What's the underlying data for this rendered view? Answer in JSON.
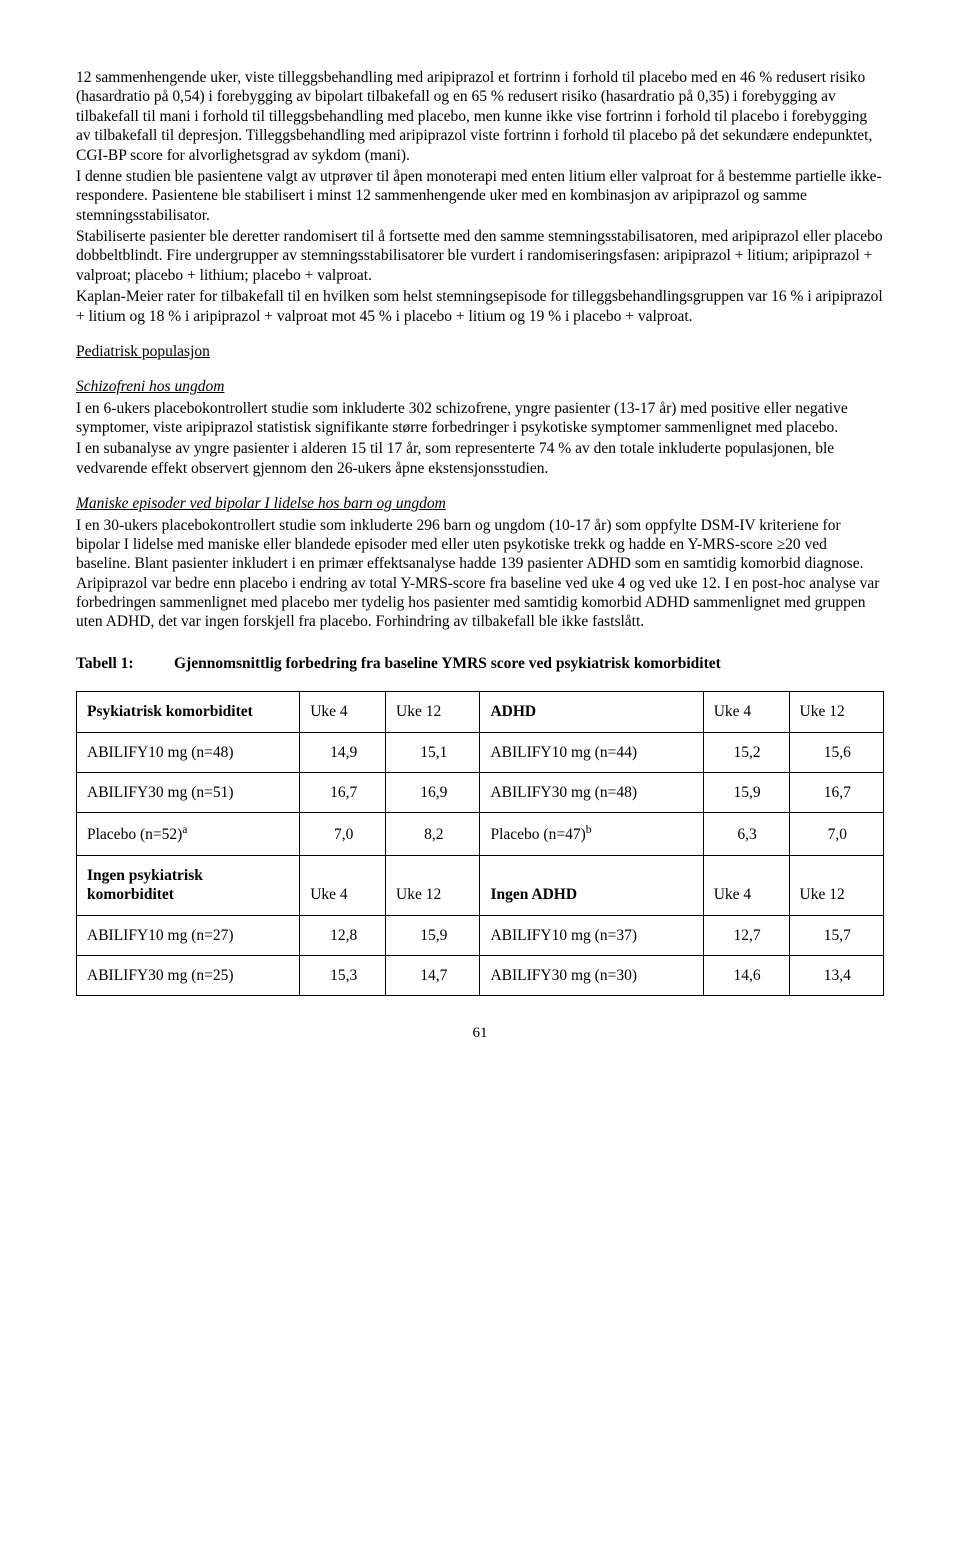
{
  "paragraphs": {
    "p1": "12 sammenhengende uker, viste tilleggsbehandling med aripiprazol et fortrinn i forhold til placebo med en 46 % redusert risiko (hasardratio på 0,54) i forebygging av bipolart tilbakefall og en 65 % redusert risiko (hasardratio på 0,35) i forebygging av tilbakefall til mani i forhold til tilleggsbehandling med placebo, men kunne ikke vise fortrinn i forhold til placebo i forebygging av tilbakefall til depresjon. Tilleggsbehandling med aripiprazol viste fortrinn i forhold til placebo på det sekundære endepunktet, CGI-BP score for alvorlighetsgrad av sykdom (mani).",
    "p2": "I denne studien ble pasientene valgt av utprøver til åpen monoterapi med enten litium eller valproat for å bestemme partielle ikke-respondere. Pasientene ble stabilisert i minst 12 sammenhengende uker med en kombinasjon av aripiprazol og samme stemningsstabilisator.",
    "p3": "Stabiliserte pasienter ble deretter randomisert til å fortsette med den samme stemningsstabilisatoren, med aripiprazol eller placebo dobbeltblindt. Fire undergrupper av stemningsstabilisatorer ble vurdert i randomiseringsfasen: aripiprazol + litium; aripiprazol + valproat; placebo + lithium; placebo + valproat.",
    "p4": "Kaplan-Meier rater for tilbakefall til en hvilken som helst stemningsepisode for tilleggsbehandlingsgruppen var 16 % i aripiprazol + litium og 18 % i aripiprazol + valproat mot 45 % i placebo + litium og 19 % i placebo + valproat."
  },
  "sections": {
    "pediatric_heading": "Pediatrisk populasjon",
    "schizo_heading": "Schizofreni hos ungdom",
    "schizo_p1": "I en 6-ukers placebokontrollert studie som inkluderte 302 schizofrene, yngre pasienter (13-17 år) med positive eller negative symptomer, viste aripiprazol statistisk signifikante større forbedringer i psykotiske symptomer sammenlignet med placebo.",
    "schizo_p2": "I en subanalyse av yngre pasienter i alderen 15 til 17 år, som representerte 74 % av den totale inkluderte populasjonen, ble vedvarende effekt observert gjennom den 26-ukers åpne ekstensjonsstudien.",
    "manic_heading": "Maniske episoder ved bipolar I lidelse hos barn og ungdom",
    "manic_p": "I en 30-ukers placebokontrollert studie som inkluderte 296 barn og ungdom (10-17 år) som oppfylte DSM-IV kriteriene for bipolar I lidelse med maniske eller blandede episoder med eller uten psykotiske trekk og hadde en Y-MRS-score ≥20 ved baseline. Blant pasienter inkludert i en primær effektsanalyse hadde 139 pasienter ADHD som en samtidig komorbid diagnose. Aripiprazol var bedre enn placebo i endring av total Y-MRS-score fra baseline ved uke 4 og ved uke 12. I en post-hoc analyse var forbedringen sammenlignet med placebo mer tydelig hos pasienter med samtidig komorbid ADHD sammenlignet med gruppen uten ADHD, det var ingen forskjell fra placebo. Forhindring av tilbakefall ble ikke fastslått."
  },
  "table": {
    "caption_label": "Tabell 1:",
    "caption_text": "Gjennomsnittlig forbedring fra baseline YMRS score ved psykiatrisk komorbiditet",
    "header1": {
      "col1": "Psykiatrisk komorbiditet",
      "col2": "Uke 4",
      "col3": "Uke 12",
      "col4": "ADHD",
      "col5": "Uke 4",
      "col6": "Uke 12"
    },
    "rows1": [
      {
        "c1": "ABILIFY10 mg (n=48)",
        "c2": "14,9",
        "c3": "15,1",
        "c4": "ABILIFY10 mg (n=44)",
        "c5": "15,2",
        "c6": "15,6"
      },
      {
        "c1": "ABILIFY30 mg (n=51)",
        "c2": "16,7",
        "c3": "16,9",
        "c4": "ABILIFY30 mg (n=48)",
        "c5": "15,9",
        "c6": "16,7"
      }
    ],
    "placebo_row": {
      "c1_pre": "Placebo (n=52)",
      "c1_sup": "a",
      "c2": "7,0",
      "c3": "8,2",
      "c4_pre": "Placebo (n=47)",
      "c4_sup": "b",
      "c5": "6,3",
      "c6": "7,0"
    },
    "header2": {
      "col1": "Ingen psykiatrisk komorbiditet",
      "col2": "Uke 4",
      "col3": "Uke 12",
      "col4": "Ingen ADHD",
      "col5": "Uke 4",
      "col6": "Uke 12"
    },
    "rows2": [
      {
        "c1": "ABILIFY10 mg (n=27)",
        "c2": "12,8",
        "c3": "15,9",
        "c4": "ABILIFY10 mg (n=37)",
        "c5": "12,7",
        "c6": "15,7"
      },
      {
        "c1": "ABILIFY30 mg (n=25)",
        "c2": "15,3",
        "c3": "14,7",
        "c4": "ABILIFY30 mg (n=30)",
        "c5": "14,6",
        "c6": "13,4"
      }
    ]
  },
  "page_number": "61"
}
